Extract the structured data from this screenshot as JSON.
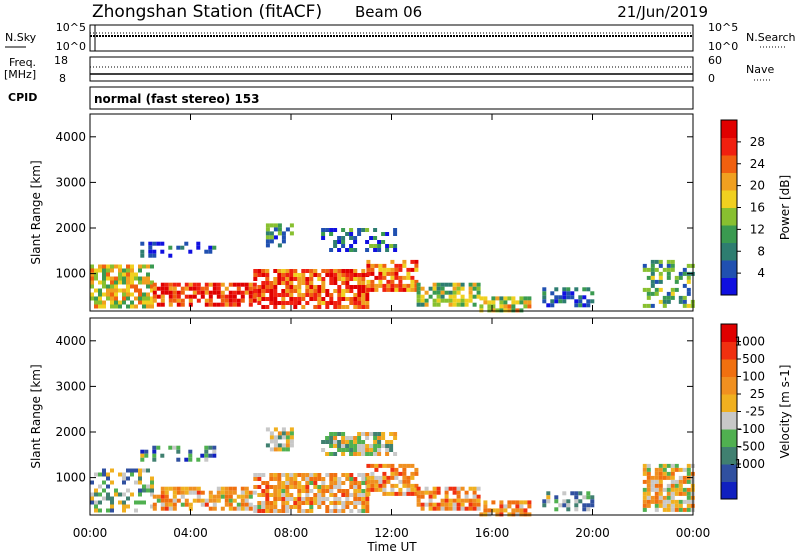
{
  "header": {
    "station": "Zhongshan Station (fitACF)",
    "beam": "Beam 06",
    "date": "21/Jun/2019"
  },
  "top_panels": {
    "nsky_label": "N.Sky",
    "nsky_ticks": [
      "10^5",
      "10^0"
    ],
    "nsearch_label": "N.Search",
    "nsearch_ticks": [
      "10^5",
      "10^0"
    ],
    "freq_label": "Freq.",
    "freq_unit": "[MHz]",
    "freq_ticks": [
      "18",
      "8"
    ],
    "nave_label": "Nave",
    "nave_ticks": [
      "60",
      "0"
    ],
    "cpid_label": "CPID",
    "cpid_value": "normal (fast stereo) 153"
  },
  "chart_data": [
    {
      "type": "heatmap",
      "name": "power",
      "ylabel": "Slant Range [km]",
      "yticks": [
        "1000",
        "2000",
        "3000",
        "4000"
      ],
      "ylim": [
        180,
        4500
      ],
      "colorbar": {
        "label": "Power [dB]",
        "ticks": [
          "4",
          "8",
          "12",
          "16",
          "20",
          "24",
          "28"
        ],
        "colors": [
          "#1010e0",
          "#2050b0",
          "#2e7d70",
          "#3a9a50",
          "#88c030",
          "#f0d020",
          "#f0a020",
          "#f06010",
          "#f02010",
          "#e00000"
        ]
      },
      "bands": [
        {
          "t0": 0.0,
          "t1": 2.5,
          "r0": 300,
          "r1": 1200,
          "level": 0.55
        },
        {
          "t0": 2.5,
          "t1": 6.5,
          "r0": 300,
          "r1": 800,
          "level": 0.85
        },
        {
          "t0": 6.5,
          "t1": 11.0,
          "r0": 300,
          "r1": 1100,
          "level": 0.8
        },
        {
          "t0": 11.0,
          "t1": 13.0,
          "r0": 600,
          "r1": 1300,
          "level": 0.75
        },
        {
          "t0": 13.0,
          "t1": 15.5,
          "r0": 300,
          "r1": 800,
          "level": 0.45
        },
        {
          "t0": 15.5,
          "t1": 17.5,
          "r0": 200,
          "r1": 500,
          "level": 0.5
        },
        {
          "t0": 7.0,
          "t1": 8.0,
          "r0": 1600,
          "r1": 2100,
          "level": 0.3
        },
        {
          "t0": 9.2,
          "t1": 12.2,
          "r0": 1500,
          "r1": 2000,
          "level": 0.2
        },
        {
          "t0": 2.0,
          "t1": 5.0,
          "r0": 1400,
          "r1": 1700,
          "level": 0.15
        },
        {
          "t0": 18.0,
          "t1": 20.0,
          "r0": 300,
          "r1": 700,
          "level": 0.15
        },
        {
          "t0": 22.0,
          "t1": 24.0,
          "r0": 300,
          "r1": 1300,
          "level": 0.35
        }
      ]
    },
    {
      "type": "heatmap",
      "name": "velocity",
      "ylabel": "Slant Range [km]",
      "yticks": [
        "1000",
        "2000",
        "3000",
        "4000"
      ],
      "ylim": [
        180,
        4500
      ],
      "colorbar": {
        "label": "Velocity [m s-1]",
        "ticks": [
          "1000",
          "500",
          "100",
          "25",
          "-25",
          "-100",
          "-500",
          "-1000"
        ],
        "colors": [
          "#1020c0",
          "#3050a0",
          "#408070",
          "#50b050",
          "#c8c8c8",
          "#f0b020",
          "#f09020",
          "#f07010",
          "#f03010",
          "#e00000"
        ]
      },
      "bands": [
        {
          "t0": 0.0,
          "t1": 2.5,
          "r0": 300,
          "r1": 1200,
          "level": 0.35
        },
        {
          "t0": 2.5,
          "t1": 6.5,
          "r0": 300,
          "r1": 800,
          "level": 0.6
        },
        {
          "t0": 6.5,
          "t1": 11.0,
          "r0": 300,
          "r1": 1100,
          "level": 0.6
        },
        {
          "t0": 11.0,
          "t1": 13.0,
          "r0": 600,
          "r1": 1300,
          "level": 0.65
        },
        {
          "t0": 13.0,
          "t1": 15.5,
          "r0": 300,
          "r1": 800,
          "level": 0.65
        },
        {
          "t0": 15.5,
          "t1": 17.5,
          "r0": 200,
          "r1": 500,
          "level": 0.65
        },
        {
          "t0": 7.0,
          "t1": 8.0,
          "r0": 1600,
          "r1": 2100,
          "level": 0.45
        },
        {
          "t0": 9.2,
          "t1": 12.2,
          "r0": 1500,
          "r1": 2000,
          "level": 0.45
        },
        {
          "t0": 2.0,
          "t1": 5.0,
          "r0": 1400,
          "r1": 1700,
          "level": 0.3
        },
        {
          "t0": 18.0,
          "t1": 20.0,
          "r0": 300,
          "r1": 700,
          "level": 0.3
        },
        {
          "t0": 22.0,
          "t1": 24.0,
          "r0": 300,
          "r1": 1300,
          "level": 0.55
        }
      ],
      "xlabel": "Time UT",
      "xticks": [
        "00:00",
        "04:00",
        "08:00",
        "12:00",
        "16:00",
        "20:00",
        "00:00"
      ],
      "xlim": [
        0,
        24
      ]
    }
  ]
}
